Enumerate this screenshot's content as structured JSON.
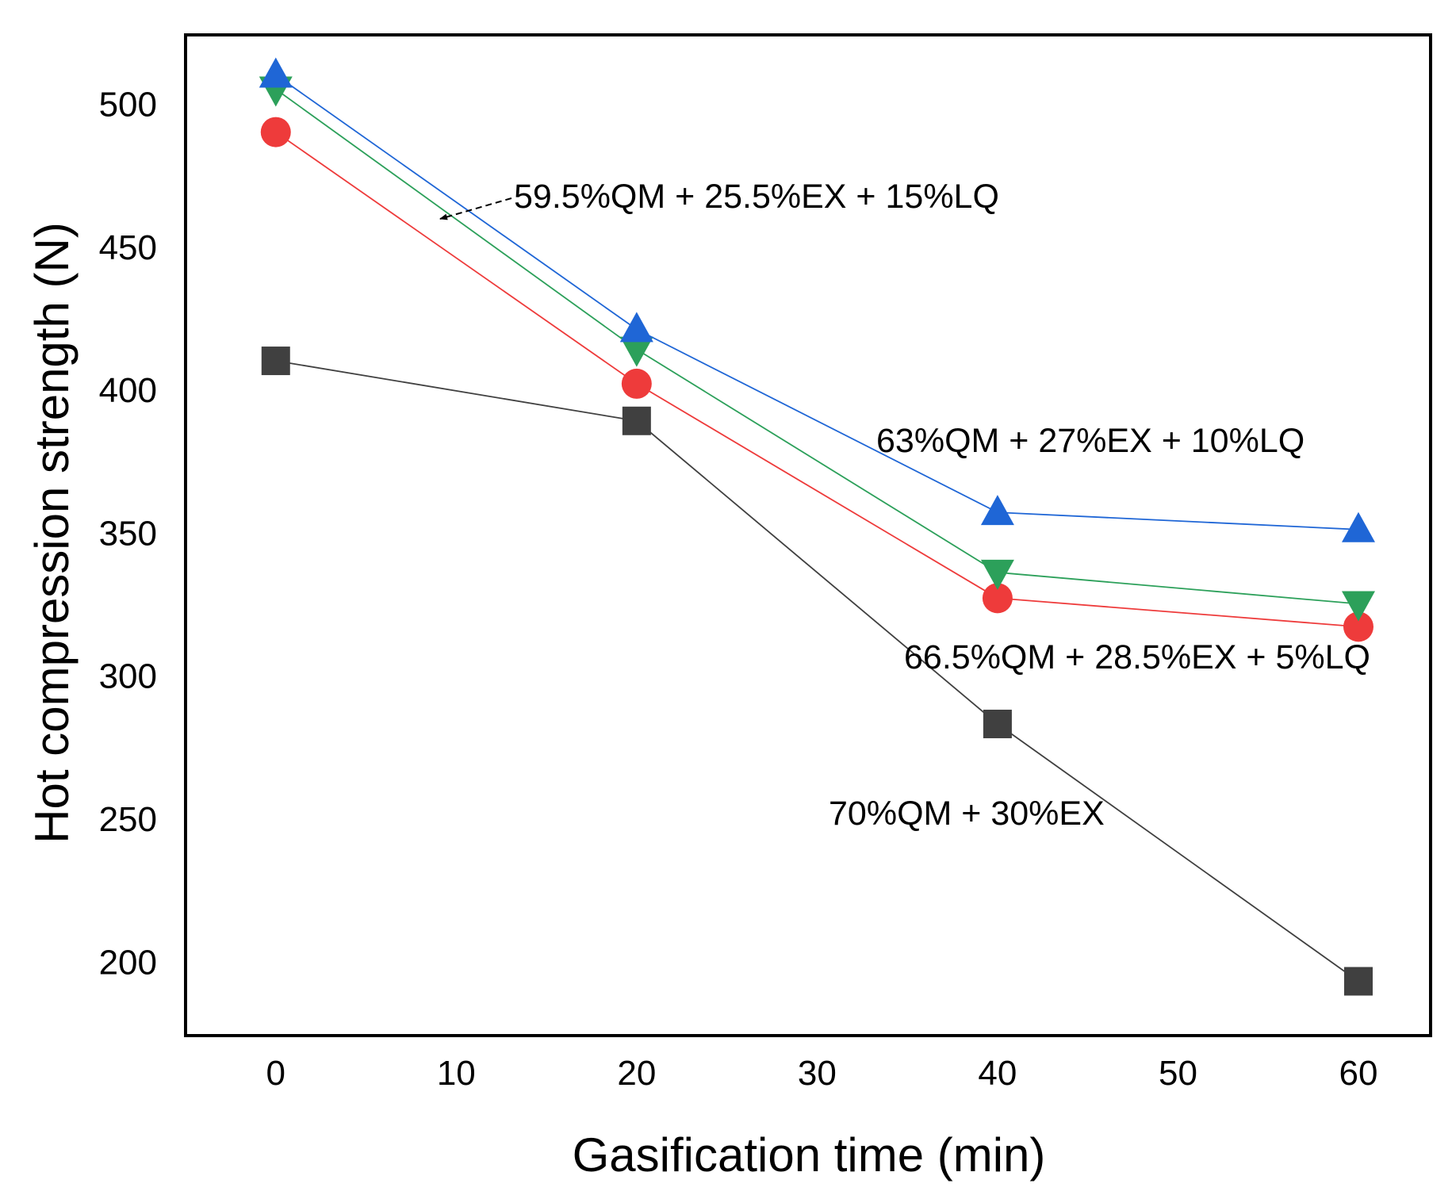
{
  "chart_data": {
    "type": "line",
    "title": "",
    "xlabel": "Gasification time (min)",
    "ylabel": "Hot compression strength (N)",
    "xlim": [
      -5,
      64
    ],
    "ylim": [
      174,
      524
    ],
    "xticks": [
      0,
      10,
      20,
      30,
      40,
      50,
      60
    ],
    "yticks": [
      200,
      250,
      300,
      350,
      400,
      450,
      500
    ],
    "x": [
      0,
      20,
      40,
      60
    ],
    "series": [
      {
        "name": "70%QM + 30%EX",
        "marker": "square",
        "color": "#404040",
        "values": [
          410,
          389,
          283,
          193
        ]
      },
      {
        "name": "66.5%QM + 28.5%EX + 5%LQ",
        "marker": "circle",
        "color": "#ee3b3b",
        "values": [
          490,
          402,
          327,
          317
        ]
      },
      {
        "name": "59.5%QM + 25.5%EX + 15%LQ",
        "marker": "triangle-down",
        "color": "#2ca05a",
        "values": [
          505,
          414,
          336,
          325
        ]
      },
      {
        "name": "63%QM + 27%EX + 10%LQ",
        "marker": "triangle-up",
        "color": "#1f66d6",
        "values": [
          510,
          421,
          357,
          351
        ]
      }
    ],
    "annotations": [
      {
        "text": "59.5%QM + 25.5%EX + 15%LQ",
        "series": "59.5%QM + 25.5%EX + 15%LQ",
        "arrow": true
      },
      {
        "text": "63%QM + 27%EX + 10%LQ",
        "series": "63%QM + 27%EX + 10%LQ"
      },
      {
        "text": "66.5%QM + 28.5%EX + 5%LQ",
        "series": "66.5%QM + 28.5%EX + 5%LQ"
      },
      {
        "text": "70%QM + 30%EX",
        "series": "70%QM + 30%EX"
      }
    ],
    "grid": false,
    "legend": "none"
  }
}
